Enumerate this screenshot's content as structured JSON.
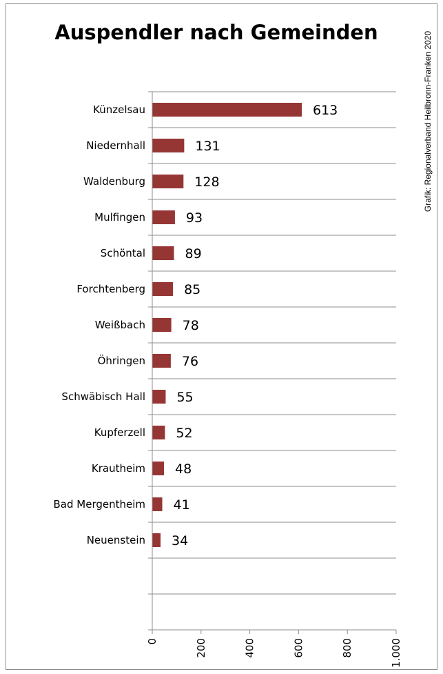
{
  "chart_data": {
    "type": "bar",
    "orientation": "horizontal",
    "title": "Auspendler nach Gemeinden",
    "source_note": "Grafik: Regionalverband Heilbronn-Franken 2020",
    "categories": [
      "Künzelsau",
      "Niedernhall",
      "Waldenburg",
      "Mulfingen",
      "Schöntal",
      "Forchtenberg",
      "Weißbach",
      "Öhringen",
      "Schwäbisch Hall",
      "Kupferzell",
      "Krautheim",
      "Bad Mergentheim",
      "Neuenstein",
      "",
      ""
    ],
    "values": [
      613,
      131,
      128,
      93,
      89,
      85,
      78,
      76,
      55,
      52,
      48,
      41,
      34,
      null,
      null
    ],
    "value_labels": [
      "613",
      "131",
      "128",
      "93",
      "89",
      "85",
      "78",
      "76",
      "55",
      "52",
      "48",
      "41",
      "34",
      "",
      ""
    ],
    "x_ticks": [
      0,
      200,
      400,
      600,
      800,
      1000
    ],
    "x_tick_labels": [
      "0",
      "200",
      "400",
      "600",
      "800",
      "1.000"
    ],
    "xlim": [
      0,
      1000
    ],
    "bar_color": "#963634",
    "grid": "horizontal category separators",
    "legend": "none"
  }
}
